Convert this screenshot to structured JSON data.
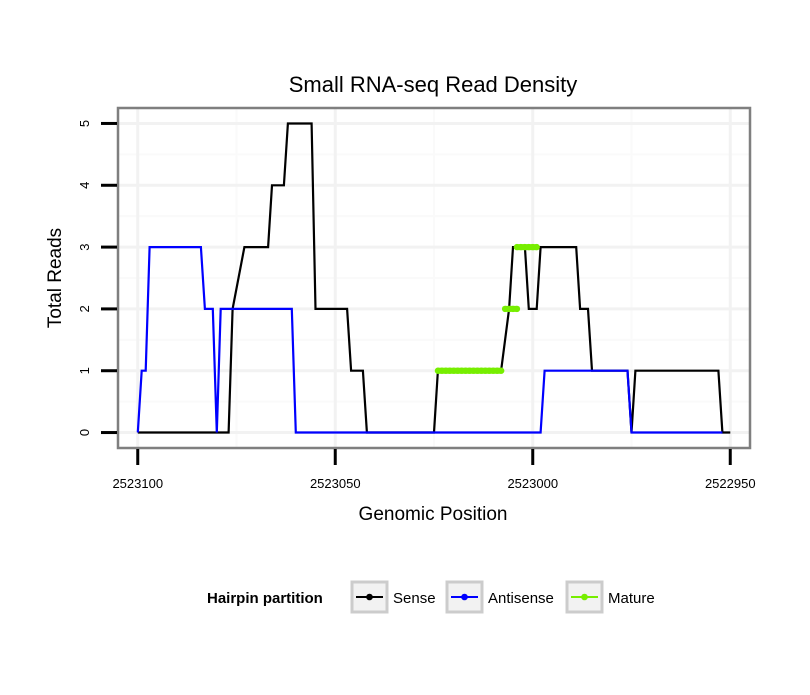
{
  "chart_data": {
    "type": "line",
    "title": "Small RNA-seq Read Density",
    "xlabel": "Genomic Position",
    "ylabel": "Total Reads",
    "xlim": [
      2523105,
      2522945
    ],
    "ylim": [
      -0.25,
      5.25
    ],
    "x_reversed": true,
    "x_ticks": [
      2523100,
      2523050,
      2523000,
      2522950
    ],
    "y_ticks": [
      0,
      1,
      2,
      3,
      4,
      5
    ],
    "legend": {
      "title": "Hairpin partition",
      "position": "bottom"
    },
    "series": [
      {
        "name": "Sense",
        "color": "#000000",
        "points": [
          [
            2523100,
            0
          ],
          [
            2523093,
            0
          ],
          [
            2523080,
            0
          ],
          [
            2523077,
            0
          ],
          [
            2523076,
            2
          ],
          [
            2523073,
            3
          ],
          [
            2523067,
            3
          ],
          [
            2523066,
            4
          ],
          [
            2523063,
            4
          ],
          [
            2523062,
            5
          ],
          [
            2523056,
            5
          ],
          [
            2523055,
            2
          ],
          [
            2523047,
            2
          ],
          [
            2523046,
            1
          ],
          [
            2523043,
            1
          ],
          [
            2523042,
            0
          ],
          [
            2523025,
            0
          ],
          [
            2523024,
            1
          ],
          [
            2523008,
            1
          ],
          [
            2523006,
            2
          ],
          [
            2523005,
            3
          ],
          [
            2523002,
            3
          ],
          [
            2523001,
            2
          ],
          [
            2522999,
            2
          ],
          [
            2522998,
            3
          ],
          [
            2522989,
            3
          ],
          [
            2522988,
            2
          ],
          [
            2522986,
            2
          ],
          [
            2522985,
            1
          ],
          [
            2522976,
            1
          ],
          [
            2522975,
            0
          ],
          [
            2522974,
            1
          ],
          [
            2522953,
            1
          ],
          [
            2522952,
            0
          ],
          [
            2522950,
            0
          ]
        ]
      },
      {
        "name": "Antisense",
        "color": "#0000ff",
        "points": [
          [
            2523100,
            0
          ],
          [
            2523099,
            1
          ],
          [
            2523098,
            1
          ],
          [
            2523097,
            3
          ],
          [
            2523084,
            3
          ],
          [
            2523083,
            2
          ],
          [
            2523081,
            2
          ],
          [
            2523080,
            0
          ],
          [
            2523079,
            2
          ],
          [
            2523061,
            2
          ],
          [
            2523060,
            0
          ],
          [
            2522998,
            0
          ],
          [
            2522997,
            1
          ],
          [
            2522976,
            1
          ],
          [
            2522975,
            0
          ],
          [
            2522952,
            0
          ]
        ]
      },
      {
        "name": "Mature",
        "color": "#77ee00",
        "points": [
          [
            2523024,
            1
          ],
          [
            2523008,
            1
          ],
          [
            2523007,
            2
          ],
          [
            2523004,
            2
          ],
          [
            2523004,
            3
          ],
          [
            2522999,
            3
          ]
        ]
      }
    ]
  }
}
